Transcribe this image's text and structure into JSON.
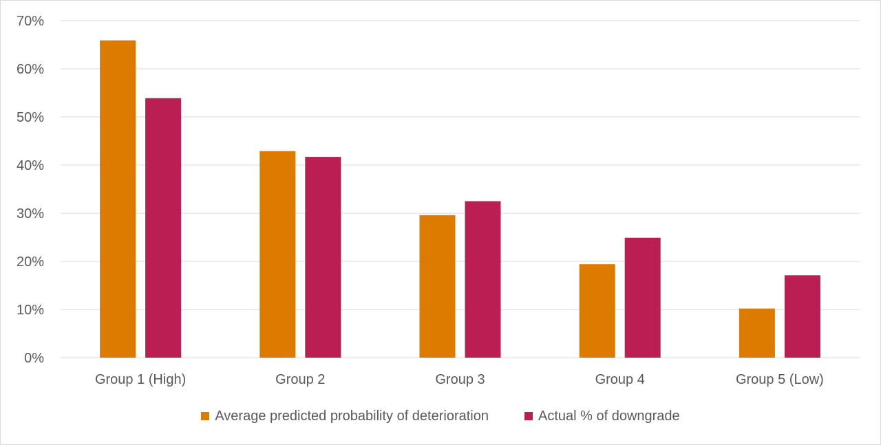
{
  "chart_data": {
    "type": "bar",
    "categories": [
      "Group 1 (High)",
      "Group 2",
      "Group 3",
      "Group 4",
      "Group 5 (Low)"
    ],
    "series": [
      {
        "name": "Average predicted probability of deterioration",
        "color": "#DD7A00",
        "values": [
          0.659,
          0.429,
          0.296,
          0.194,
          0.102
        ]
      },
      {
        "name": "Actual % of downgrade",
        "color": "#BA1E52",
        "values": [
          0.539,
          0.417,
          0.325,
          0.249,
          0.171
        ]
      }
    ],
    "y_ticks": [
      "0%",
      "10%",
      "20%",
      "30%",
      "40%",
      "50%",
      "60%",
      "70%"
    ],
    "ylim": [
      0,
      0.7
    ],
    "grid": true,
    "legend_position": "bottom"
  }
}
